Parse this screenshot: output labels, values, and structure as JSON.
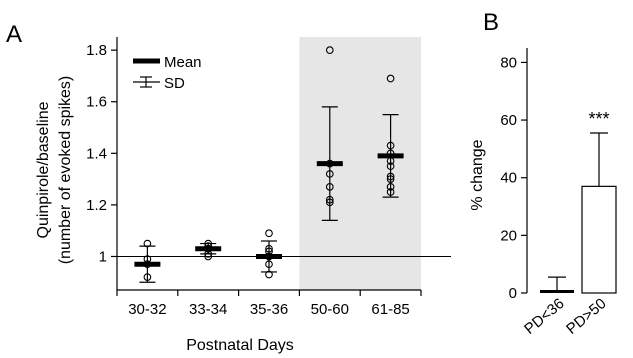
{
  "chart_data": [
    {
      "panel_label": "A",
      "type": "scatter",
      "xlabel": "Postnatal Days",
      "ylabel_line1": "Quinpirole/baseline",
      "ylabel_line2": "(number of evoked spikes)",
      "categories": [
        "30-32",
        "33-34",
        "35-36",
        "50-60",
        "61-85"
      ],
      "ylim": [
        0.87,
        1.82
      ],
      "yticks": [
        1,
        1.2,
        1.4,
        1.6,
        1.8
      ],
      "ytick_labels": [
        "1",
        "1.2",
        "1.4",
        "1.6",
        "1.8"
      ],
      "reference_line": 1,
      "shaded_categories": [
        "50-60",
        "61-85"
      ],
      "shade_color": "#e6e6e6",
      "legend": {
        "mean_label": "Mean",
        "sd_label": "SD",
        "placement": "top-left"
      },
      "series": [
        {
          "category": "30-32",
          "mean": 0.97,
          "sd": 0.07,
          "points": [
            1.05,
            0.99,
            0.97,
            0.92
          ]
        },
        {
          "category": "33-34",
          "mean": 1.03,
          "sd": 0.02,
          "points": [
            1.05,
            1.04,
            1.03,
            1.01,
            1.0
          ]
        },
        {
          "category": "35-36",
          "mean": 1.0,
          "sd": 0.06,
          "points": [
            1.09,
            1.03,
            1.02,
            1.0,
            0.97,
            0.93
          ]
        },
        {
          "category": "50-60",
          "mean": 1.36,
          "sd": 0.22,
          "points": [
            1.8,
            1.36,
            1.32,
            1.27,
            1.22,
            1.21
          ]
        },
        {
          "category": "61-85",
          "mean": 1.39,
          "sd": 0.16,
          "points": [
            1.69,
            1.43,
            1.4,
            1.37,
            1.35,
            1.31,
            1.3,
            1.27,
            1.25
          ]
        }
      ]
    },
    {
      "panel_label": "B",
      "type": "bar",
      "ylabel": "% change",
      "categories": [
        "PD<36",
        "PD>50"
      ],
      "values": [
        0.5,
        37
      ],
      "errors": [
        5,
        18.5
      ],
      "ylim": [
        0,
        85
      ],
      "yticks": [
        0,
        20,
        40,
        60,
        80
      ],
      "ytick_labels": [
        "0",
        "20",
        "40",
        "60",
        "80"
      ],
      "significance": "***"
    }
  ]
}
